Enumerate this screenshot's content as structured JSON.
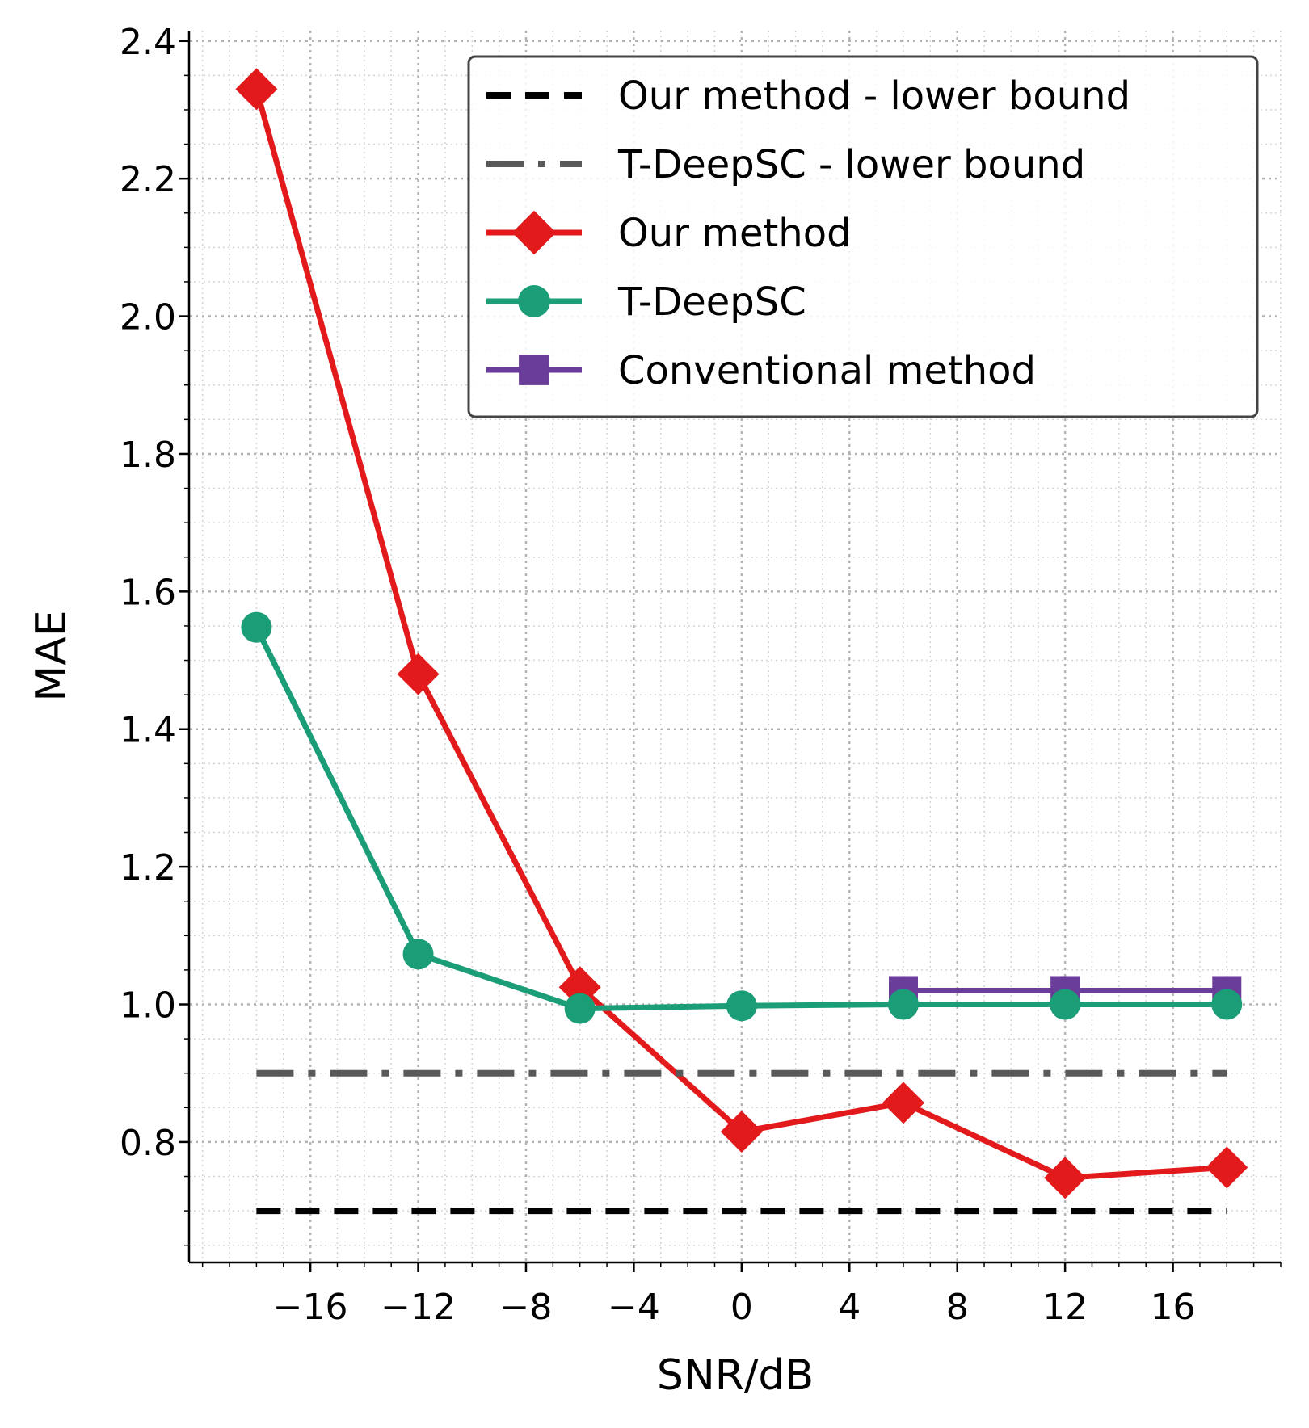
{
  "chart_data": {
    "type": "line",
    "title": "",
    "xlabel": "SNR/dB",
    "ylabel": "MAE",
    "xlim": [
      -20.5,
      20
    ],
    "ylim": [
      0.625,
      2.415
    ],
    "x_ticks": [
      -16,
      -12,
      -8,
      -4,
      0,
      4,
      8,
      12,
      16
    ],
    "x_tick_labels": [
      "−16",
      "−12",
      "−8",
      "−4",
      "0",
      "4",
      "8",
      "12",
      "16"
    ],
    "y_ticks": [
      0.8,
      1.0,
      1.2,
      1.4,
      1.6,
      1.8,
      2.0,
      2.2,
      2.4
    ],
    "y_tick_labels": [
      "0.8",
      "1.0",
      "1.2",
      "1.4",
      "1.6",
      "1.8",
      "2.0",
      "2.2",
      "2.4"
    ],
    "x_minor_step": 1,
    "y_minor_step": 0.05,
    "grid": "major and minor, dotted",
    "legend_position": "top-right",
    "series": [
      {
        "name": "Our method - lower bound",
        "style": "dashed",
        "marker": "none",
        "color": "#000000",
        "x": [
          -18,
          18
        ],
        "y": [
          0.7,
          0.7
        ]
      },
      {
        "name": "T-DeepSC - lower bound",
        "style": "dashdot",
        "marker": "none",
        "color": "#595959",
        "x": [
          -18,
          18
        ],
        "y": [
          0.9,
          0.9
        ]
      },
      {
        "name": "Our method",
        "style": "solid",
        "marker": "diamond",
        "color": "#e31a1c",
        "x": [
          -18,
          -12,
          -6,
          0,
          6,
          12,
          18
        ],
        "y": [
          2.33,
          1.48,
          1.025,
          0.815,
          0.857,
          0.748,
          0.763
        ]
      },
      {
        "name": "T-DeepSC",
        "style": "solid",
        "marker": "circle",
        "color": "#1b9e77",
        "x": [
          -18,
          -12,
          -6,
          0,
          6,
          12,
          18
        ],
        "y": [
          1.548,
          1.073,
          0.994,
          0.998,
          1.0,
          1.0,
          1.0
        ]
      },
      {
        "name": "Conventional method",
        "style": "solid",
        "marker": "square",
        "color": "#6a3d9a",
        "x": [
          6,
          12,
          18
        ],
        "y": [
          1.02,
          1.02,
          1.02
        ]
      }
    ],
    "draw_order": [
      2,
      4,
      3,
      1,
      0
    ]
  }
}
